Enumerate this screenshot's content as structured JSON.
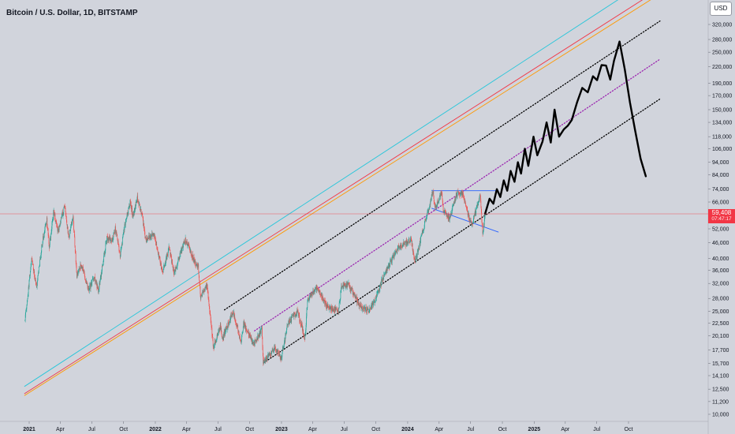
{
  "header": {
    "title": "Bitcoin / U.S. Dollar, 1D, BITSTAMP"
  },
  "toolbar": {
    "currency_label": "USD"
  },
  "last_price": {
    "value": "59,408",
    "countdown": "07:47:17"
  },
  "colors": {
    "background": "#d1d4dc",
    "candle_up": "#26a69a",
    "candle_down": "#ef5350",
    "projection": "#000000",
    "channel": "#000000",
    "midline": "#9c27b0",
    "triangle": "#2962ff",
    "cyan_line": "#26c6da",
    "red_line": "#f23645",
    "orange_line": "#ff9800",
    "price_line": "#f23645"
  },
  "chart_data": {
    "type": "candlestick",
    "title": "Bitcoin / U.S. Dollar, 1D, BITSTAMP",
    "y_scale": "log",
    "ylim": [
      9500,
      400000
    ],
    "xlim": [
      "2020-12-20",
      "2025-12-31"
    ],
    "y_ticks": [
      10000,
      11200,
      12500,
      14100,
      15700,
      17700,
      20100,
      22500,
      25000,
      28000,
      32000,
      36000,
      40000,
      46000,
      52000,
      59408,
      66000,
      74000,
      84000,
      94000,
      106000,
      118000,
      134000,
      150000,
      170000,
      190000,
      220000,
      250000,
      280000,
      320000
    ],
    "y_tick_labels": [
      "10,000",
      "11,200",
      "12,500",
      "14,100",
      "15,700",
      "17,700",
      "20,100",
      "22,500",
      "25,000",
      "28,000",
      "32,000",
      "36,000",
      "40,000",
      "46,000",
      "52,000",
      "59,408",
      "66,000",
      "74,000",
      "84,000",
      "94,000",
      "106,000",
      "118,000",
      "134,000",
      "150,000",
      "170,000",
      "190,000",
      "220,000",
      "250,000",
      "280,000",
      "320,000"
    ],
    "x_ticks": [
      {
        "label": "2021",
        "date": "2021-01-01",
        "bold": true
      },
      {
        "label": "Apr",
        "date": "2021-04-01",
        "bold": false
      },
      {
        "label": "Jul",
        "date": "2021-07-01",
        "bold": false
      },
      {
        "label": "Oct",
        "date": "2021-10-01",
        "bold": false
      },
      {
        "label": "2022",
        "date": "2022-01-01",
        "bold": true
      },
      {
        "label": "Apr",
        "date": "2022-04-01",
        "bold": false
      },
      {
        "label": "Jul",
        "date": "2022-07-01",
        "bold": false
      },
      {
        "label": "Oct",
        "date": "2022-10-01",
        "bold": false
      },
      {
        "label": "2023",
        "date": "2023-01-01",
        "bold": true
      },
      {
        "label": "Apr",
        "date": "2023-04-01",
        "bold": false
      },
      {
        "label": "Jul",
        "date": "2023-07-01",
        "bold": false
      },
      {
        "label": "Oct",
        "date": "2023-10-01",
        "bold": false
      },
      {
        "label": "2024",
        "date": "2024-01-01",
        "bold": true
      },
      {
        "label": "Apr",
        "date": "2024-04-01",
        "bold": false
      },
      {
        "label": "Jul",
        "date": "2024-07-01",
        "bold": false
      },
      {
        "label": "Oct",
        "date": "2024-10-01",
        "bold": false
      },
      {
        "label": "2025",
        "date": "2025-01-01",
        "bold": true
      },
      {
        "label": "Apr",
        "date": "2025-04-01",
        "bold": false
      },
      {
        "label": "Jul",
        "date": "2025-07-01",
        "bold": false
      },
      {
        "label": "Oct",
        "date": "2025-10-01",
        "bold": false
      }
    ],
    "last_price": 59408,
    "price_path": [
      [
        "2020-12-20",
        23000
      ],
      [
        "2021-01-08",
        40000
      ],
      [
        "2021-01-22",
        31000
      ],
      [
        "2021-02-08",
        46000
      ],
      [
        "2021-02-21",
        57000
      ],
      [
        "2021-02-28",
        44000
      ],
      [
        "2021-03-13",
        61000
      ],
      [
        "2021-03-25",
        51000
      ],
      [
        "2021-04-14",
        64000
      ],
      [
        "2021-04-25",
        48000
      ],
      [
        "2021-05-08",
        58000
      ],
      [
        "2021-05-19",
        34000
      ],
      [
        "2021-06-01",
        38000
      ],
      [
        "2021-06-22",
        30000
      ],
      [
        "2021-07-07",
        34000
      ],
      [
        "2021-07-20",
        30000
      ],
      [
        "2021-08-14",
        48000
      ],
      [
        "2021-08-30",
        47000
      ],
      [
        "2021-09-07",
        52000
      ],
      [
        "2021-09-21",
        41000
      ],
      [
        "2021-10-06",
        55000
      ],
      [
        "2021-10-20",
        66000
      ],
      [
        "2021-10-28",
        58000
      ],
      [
        "2021-11-10",
        68500
      ],
      [
        "2021-11-25",
        57000
      ],
      [
        "2021-12-04",
        47000
      ],
      [
        "2021-12-27",
        50000
      ],
      [
        "2022-01-22",
        35000
      ],
      [
        "2022-02-10",
        44000
      ],
      [
        "2022-02-24",
        35000
      ],
      [
        "2022-03-29",
        47500
      ],
      [
        "2022-04-25",
        39000
      ],
      [
        "2022-05-05",
        37000
      ],
      [
        "2022-05-12",
        28500
      ],
      [
        "2022-05-31",
        31500
      ],
      [
        "2022-06-18",
        18000
      ],
      [
        "2022-07-08",
        22000
      ],
      [
        "2022-07-13",
        19500
      ],
      [
        "2022-08-14",
        25000
      ],
      [
        "2022-09-06",
        19000
      ],
      [
        "2022-09-13",
        22500
      ],
      [
        "2022-10-13",
        18500
      ],
      [
        "2022-11-05",
        21400
      ],
      [
        "2022-11-09",
        15800
      ],
      [
        "2022-12-14",
        18000
      ],
      [
        "2022-12-31",
        16500
      ],
      [
        "2023-01-20",
        22500
      ],
      [
        "2023-02-16",
        25000
      ],
      [
        "2023-03-10",
        19600
      ],
      [
        "2023-03-17",
        27500
      ],
      [
        "2023-04-14",
        31000
      ],
      [
        "2023-05-12",
        26000
      ],
      [
        "2023-06-15",
        25000
      ],
      [
        "2023-06-23",
        31000
      ],
      [
        "2023-07-13",
        31800
      ],
      [
        "2023-08-17",
        26000
      ],
      [
        "2023-09-11",
        25000
      ],
      [
        "2023-10-01",
        28000
      ],
      [
        "2023-10-24",
        34500
      ],
      [
        "2023-12-05",
        44000
      ],
      [
        "2024-01-11",
        47000
      ],
      [
        "2024-01-23",
        38500
      ],
      [
        "2024-02-15",
        52000
      ],
      [
        "2024-03-04",
        64000
      ],
      [
        "2024-03-14",
        73000
      ],
      [
        "2024-03-20",
        61500
      ],
      [
        "2024-04-08",
        72000
      ],
      [
        "2024-04-13",
        61000
      ],
      [
        "2024-05-01",
        57000
      ],
      [
        "2024-05-21",
        71000
      ],
      [
        "2024-06-07",
        71500
      ],
      [
        "2024-06-24",
        59000
      ],
      [
        "2024-07-05",
        54000
      ],
      [
        "2024-07-14",
        60000
      ],
      [
        "2024-07-29",
        70000
      ],
      [
        "2024-08-05",
        50000
      ],
      [
        "2024-08-12",
        59408
      ]
    ],
    "projection": [
      [
        "2024-08-12",
        59408
      ],
      [
        "2024-08-25",
        68000
      ],
      [
        "2024-09-05",
        65000
      ],
      [
        "2024-09-15",
        74000
      ],
      [
        "2024-09-25",
        69000
      ],
      [
        "2024-10-05",
        80000
      ],
      [
        "2024-10-15",
        73000
      ],
      [
        "2024-10-25",
        87000
      ],
      [
        "2024-11-05",
        79000
      ],
      [
        "2024-11-15",
        94000
      ],
      [
        "2024-11-24",
        85000
      ],
      [
        "2024-12-05",
        106000
      ],
      [
        "2024-12-15",
        91000
      ],
      [
        "2024-12-30",
        118000
      ],
      [
        "2025-01-10",
        100000
      ],
      [
        "2025-01-25",
        113000
      ],
      [
        "2025-02-06",
        134000
      ],
      [
        "2025-02-18",
        112000
      ],
      [
        "2025-03-01",
        150000
      ],
      [
        "2025-03-14",
        118000
      ],
      [
        "2025-03-28",
        126000
      ],
      [
        "2025-04-08",
        130000
      ],
      [
        "2025-04-20",
        137000
      ],
      [
        "2025-05-05",
        160000
      ],
      [
        "2025-05-20",
        182000
      ],
      [
        "2025-06-05",
        175000
      ],
      [
        "2025-06-20",
        202000
      ],
      [
        "2025-07-02",
        195000
      ],
      [
        "2025-07-15",
        223000
      ],
      [
        "2025-07-28",
        222000
      ],
      [
        "2025-08-09",
        196000
      ],
      [
        "2025-08-20",
        232000
      ],
      [
        "2025-09-05",
        275000
      ],
      [
        "2025-09-20",
        215000
      ],
      [
        "2025-10-05",
        160000
      ],
      [
        "2025-10-20",
        125000
      ],
      [
        "2025-11-05",
        97000
      ],
      [
        "2025-11-20",
        83000
      ]
    ],
    "trend_lines": [
      {
        "name": "cyan-diagonal-line",
        "color": "#26c6da",
        "style": "solid",
        "points": [
          [
            "2020-12-18",
            12800
          ],
          [
            "2025-10-20",
            440000
          ]
        ]
      },
      {
        "name": "red-diagonal-line",
        "color": "#f23645",
        "style": "solid",
        "points": [
          [
            "2020-12-18",
            12000
          ],
          [
            "2025-12-31",
            440000
          ]
        ]
      },
      {
        "name": "orange-diagonal-line",
        "color": "#ff9800",
        "style": "solid",
        "points": [
          [
            "2020-12-18",
            11800
          ],
          [
            "2025-12-31",
            420000
          ]
        ]
      },
      {
        "name": "channel-upper-line",
        "color": "#000000",
        "style": "dotted",
        "points": [
          [
            "2022-07-20",
            25300
          ],
          [
            "2025-12-31",
            330000
          ]
        ]
      },
      {
        "name": "channel-mid-line",
        "color": "#9c27b0",
        "style": "dotted",
        "points": [
          [
            "2022-10-15",
            21000
          ],
          [
            "2025-12-31",
            235000
          ]
        ]
      },
      {
        "name": "channel-lower-line",
        "color": "#000000",
        "style": "dotted",
        "points": [
          [
            "2022-11-10",
            15800
          ],
          [
            "2025-12-31",
            165000
          ]
        ]
      },
      {
        "name": "triangle-top-line",
        "color": "#2962ff",
        "style": "solid",
        "points": [
          [
            "2024-03-10",
            73000
          ],
          [
            "2024-09-20",
            73000
          ]
        ]
      },
      {
        "name": "triangle-bottom-line",
        "color": "#2962ff",
        "style": "solid",
        "points": [
          [
            "2024-03-10",
            62500
          ],
          [
            "2024-09-20",
            50500
          ]
        ]
      }
    ]
  }
}
